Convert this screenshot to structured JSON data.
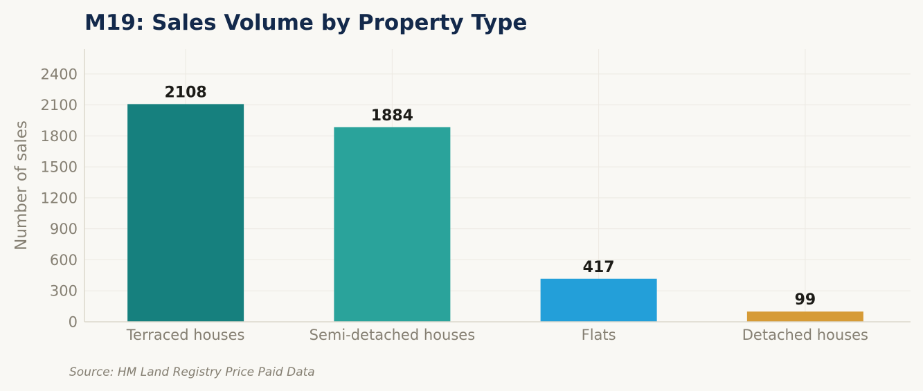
{
  "chart_data": {
    "type": "bar",
    "title": "M19: Sales Volume by Property Type",
    "xlabel": "",
    "ylabel": "Number of sales",
    "categories": [
      "Terraced houses",
      "Semi-detached houses",
      "Flats",
      "Detached houses"
    ],
    "values": [
      2108,
      1884,
      417,
      99
    ],
    "data_labels": [
      "2108",
      "1884",
      "417",
      "99"
    ],
    "bar_colors": [
      "#16807e",
      "#2aa39b",
      "#239fd9",
      "#d69b36"
    ],
    "ylim": [
      0,
      2640
    ],
    "yticks": [
      0,
      300,
      600,
      900,
      1200,
      1500,
      1800,
      2100,
      2400
    ],
    "ytick_labels": [
      "0",
      "300",
      "600",
      "900",
      "1200",
      "1500",
      "1800",
      "2100",
      "2400"
    ],
    "grid": true,
    "legend": "none"
  },
  "footer": {
    "source": "Source: HM Land Registry Price Paid Data"
  },
  "colors": {
    "background": "#f9f8f4",
    "title": "#13294b",
    "axis_text": "#857f72",
    "grid": "#ece9e2",
    "axis_line": "#dcd8cc",
    "bar_label": "#1c1b17"
  }
}
